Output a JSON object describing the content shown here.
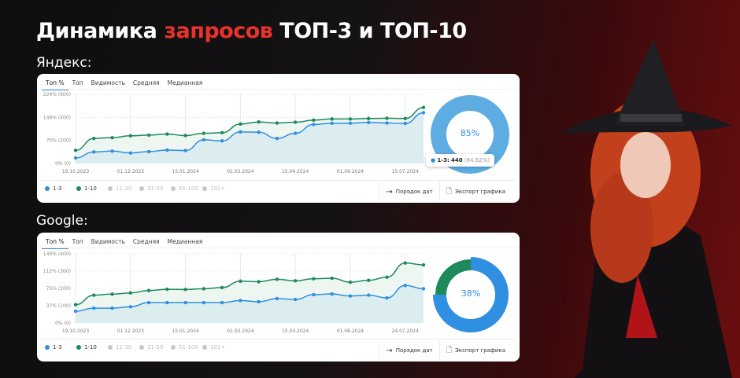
{
  "title": {
    "part1": "Динамика",
    "part2": "запросов",
    "part3": "ТОП-3 и ТОП-10"
  },
  "colors": {
    "accent_red": "#e8322b",
    "series_1_3": "#2f8fe0",
    "series_1_10": "#1e8a5a",
    "donut_yandex": "#5dade2"
  },
  "tabs": [
    "Топ %",
    "Топ",
    "Видимость",
    "Средняя",
    "Медианная"
  ],
  "legend": [
    {
      "label": "1-3",
      "active": true,
      "color": "#2f8fe0"
    },
    {
      "label": "1-10",
      "active": true,
      "color": "#1e8a5a"
    },
    {
      "label": "11-30",
      "active": false,
      "color": "#c3c7cf"
    },
    {
      "label": "31-50",
      "active": false,
      "color": "#c3c7cf"
    },
    {
      "label": "51-100",
      "active": false,
      "color": "#c3c7cf"
    },
    {
      "label": "101+",
      "active": false,
      "color": "#c3c7cf"
    }
  ],
  "actions": {
    "date_order": "Порядок дат",
    "export": "Экспорт графика"
  },
  "yandex": {
    "label": "Яндекс:",
    "tooltip": {
      "series": "1-3:",
      "value": "440",
      "pct": "(84.62%)"
    }
  },
  "google": {
    "label": "Google:"
  },
  "chart_data": [
    {
      "type": "line",
      "name": "Яндекс",
      "ylim": [
        0,
        600
      ],
      "yticks": [
        {
          "v": 0,
          "label": "0% (0)"
        },
        {
          "v": 200,
          "label": "75% (200)"
        },
        {
          "v": 400,
          "label": "149% (400)"
        },
        {
          "v": 600,
          "label": "224% (600)"
        }
      ],
      "xticks": [
        {
          "i": 0,
          "label": "19.10.2023"
        },
        {
          "i": 3,
          "label": "01.12.2023"
        },
        {
          "i": 6,
          "label": "15.01.2024"
        },
        {
          "i": 9,
          "label": "01.03.2024"
        },
        {
          "i": 12,
          "label": "15.04.2024"
        },
        {
          "i": 15,
          "label": "01.06.2024"
        },
        {
          "i": 18,
          "label": "15.07.2024"
        }
      ],
      "grid": true,
      "series": [
        {
          "name": "1-10",
          "color": "#1e8a5a",
          "values": [
            114,
            217,
            224,
            240,
            246,
            255,
            242,
            262,
            267,
            342,
            360,
            351,
            358,
            376,
            386,
            386,
            390,
            392,
            390,
            486
          ]
        },
        {
          "name": "1-3",
          "color": "#2f8fe0",
          "values": [
            48,
            100,
            107,
            91,
            103,
            116,
            112,
            205,
            196,
            274,
            271,
            217,
            262,
            338,
            349,
            349,
            356,
            351,
            347,
            440
          ]
        }
      ],
      "donut": {
        "center_label": "85%",
        "segments": [
          {
            "name": "1-3",
            "value": 100,
            "color": "#5dade2"
          }
        ]
      }
    },
    {
      "type": "line",
      "name": "Google",
      "ylim": [
        0,
        400
      ],
      "yticks": [
        {
          "v": 0,
          "label": "0% (0)"
        },
        {
          "v": 100,
          "label": "37% (100)"
        },
        {
          "v": 200,
          "label": "75% (200)"
        },
        {
          "v": 300,
          "label": "112% (300)"
        },
        {
          "v": 400,
          "label": "149% (400)"
        }
      ],
      "xticks": [
        {
          "i": 0,
          "label": "19.10.2023"
        },
        {
          "i": 3,
          "label": "01.12.2023"
        },
        {
          "i": 6,
          "label": "15.01.2024"
        },
        {
          "i": 9,
          "label": "01.03.2024"
        },
        {
          "i": 12,
          "label": "15.04.2024"
        },
        {
          "i": 15,
          "label": "01.06.2024"
        },
        {
          "i": 18,
          "label": "24.07.2024"
        }
      ],
      "grid": true,
      "series": [
        {
          "name": "1-10",
          "color": "#1e8a5a",
          "values": [
            106,
            161,
            167,
            174,
            188,
            195,
            194,
            198,
            205,
            242,
            239,
            253,
            244,
            256,
            259,
            236,
            247,
            265,
            347,
            336
          ]
        },
        {
          "name": "1-3",
          "color": "#2f8fe0",
          "values": [
            68,
            86,
            86,
            94,
            118,
            118,
            118,
            118,
            118,
            130,
            123,
            141,
            136,
            164,
            168,
            156,
            161,
            145,
            217,
            198
          ]
        }
      ],
      "donut": {
        "center_label": "38%",
        "segments": [
          {
            "name": "1-3",
            "value": 75,
            "color": "#2f8fe0"
          },
          {
            "name": "1-10",
            "value": 25,
            "color": "#1e8a5a"
          }
        ]
      }
    }
  ]
}
